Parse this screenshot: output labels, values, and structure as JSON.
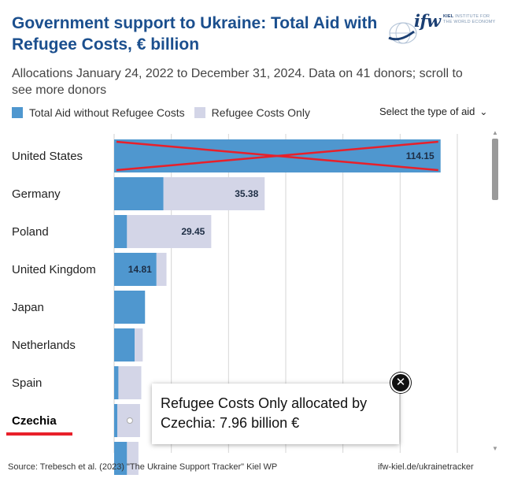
{
  "header": {
    "title": "Government support to Ukraine: Total Aid with Refugee Costs, € billion",
    "subtitle": "Allocations January 24, 2022 to December 31, 2024. Data on 41 donors; scroll to see more donors"
  },
  "logo": {
    "name": "ifw",
    "line1_bold": "KIEL",
    "line1": "INSTITUTE FOR",
    "line2": "THE WORLD ECONOMY"
  },
  "controls": {
    "select_label": "Select the type of aid",
    "select_icon": "chevron-down-icon"
  },
  "colors": {
    "total_aid": "#4f97cf",
    "refugee": "#d3d5e7",
    "cross": "#e8202a",
    "title": "#1b4f8e"
  },
  "chart_data": {
    "type": "bar",
    "orientation": "horizontal",
    "stacked": true,
    "title": "Government support to Ukraine: Total Aid with Refugee Costs, € billion",
    "categories": [
      "United States",
      "Germany",
      "Poland",
      "United Kingdom",
      "Japan",
      "Netherlands",
      "Spain",
      "Czechia",
      "…"
    ],
    "series": [
      {
        "name": "Total Aid without Refugee Costs",
        "values": [
          114.15,
          17.26,
          4.5,
          14.81,
          10.8,
          7.2,
          1.5,
          1.1,
          4.5
        ]
      },
      {
        "name": "Refugee Costs Only",
        "values": [
          0,
          35.38,
          29.45,
          3.5,
          0,
          2.8,
          8.0,
          7.96,
          4.0
        ]
      }
    ],
    "data_labels": [
      [
        "114.15",
        "",
        "",
        "14.81",
        "",
        "",
        "",
        "",
        ""
      ],
      [
        "",
        "35.38",
        "29.45",
        "",
        "",
        "",
        "",
        "",
        ""
      ]
    ],
    "xlim": [
      0,
      130
    ],
    "grid": true,
    "gridline_step": 20,
    "struck_category": "United States",
    "highlight_category": "Czechia",
    "legend_position": "top-left"
  },
  "tooltip": {
    "text": "Refugee Costs Only allocated by Czechia: 7.96 billion €",
    "close_icon": "close-icon"
  },
  "footer": {
    "source": "Source: Trebesch et al. (2023) \"The Ukraine Support Tracker\" Kiel WP",
    "link": "ifw-kiel.de/ukrainetracker"
  }
}
